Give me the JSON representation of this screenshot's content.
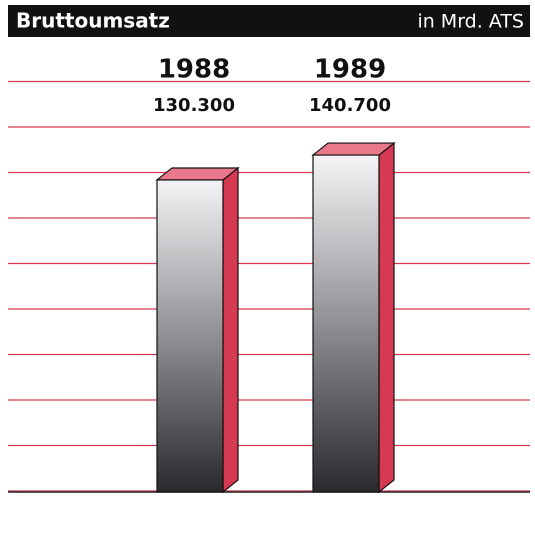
{
  "chart_data": {
    "type": "bar3d",
    "title": "Bruttoumsatz",
    "subtitle": "in Mrd. ATS",
    "categories": [
      "1988",
      "1989"
    ],
    "values": [
      130.3,
      140.7
    ],
    "value_labels": [
      "130.300",
      "140.700"
    ],
    "color": "#d63a52",
    "ylim": [
      0,
      190
    ],
    "grid": true
  }
}
